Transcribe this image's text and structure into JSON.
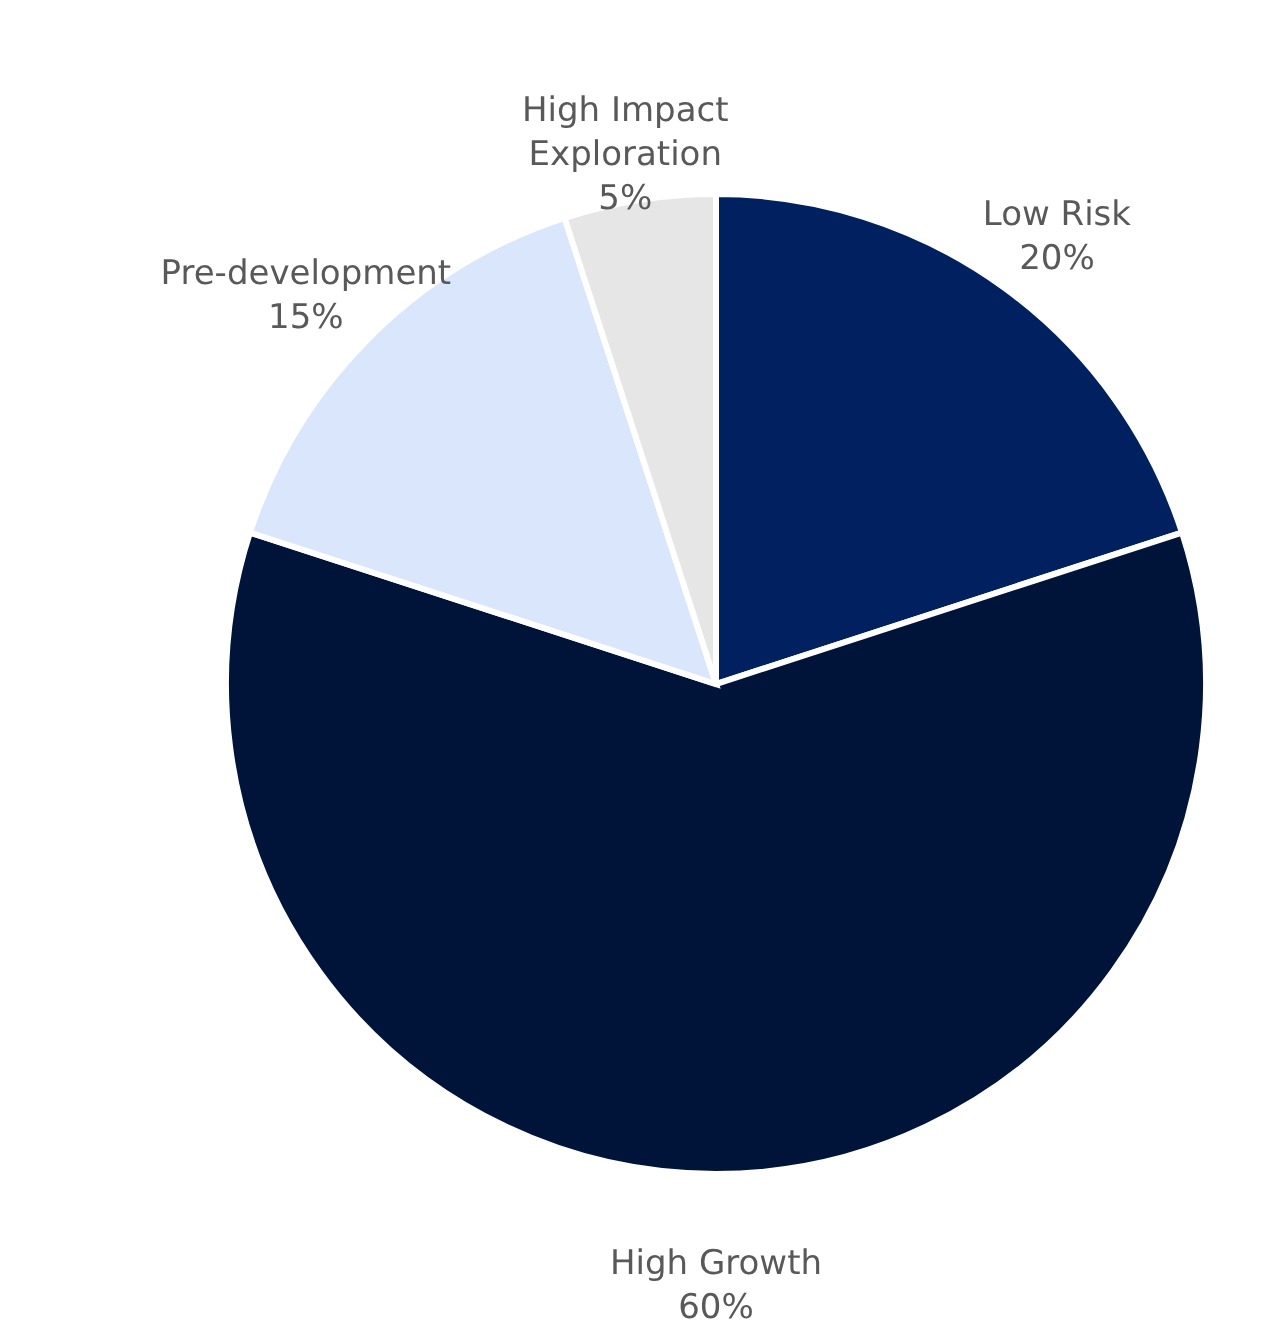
{
  "chart_data": {
    "type": "pie",
    "categories": [
      "Low Risk",
      "High Growth",
      "Pre-development",
      "High Impact Exploration"
    ],
    "values": [
      20,
      60,
      15,
      5
    ],
    "value_labels": [
      "20%",
      "60%",
      "15%",
      "5%"
    ],
    "colors": [
      "#002060",
      "#00143a",
      "#dae6fb",
      "#e6e6e6"
    ]
  }
}
